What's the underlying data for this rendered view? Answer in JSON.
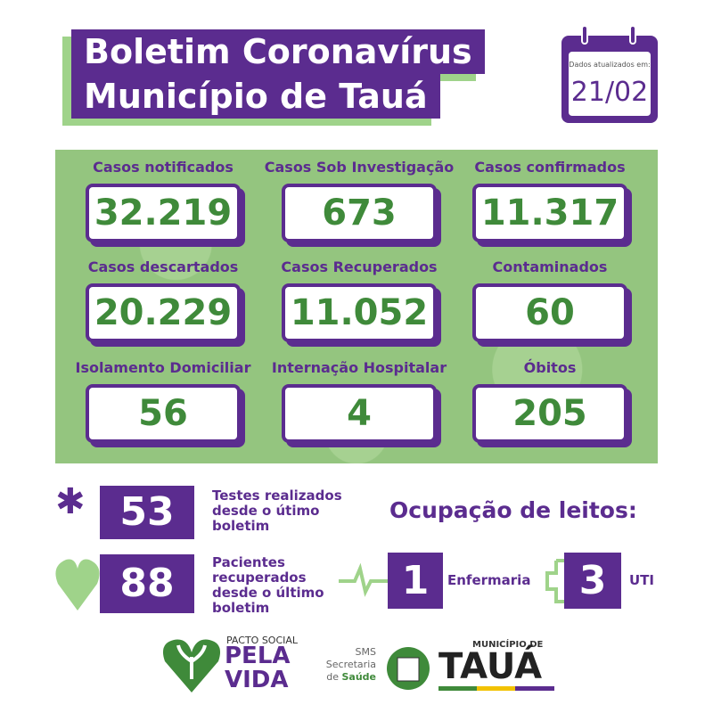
{
  "header": {
    "title_line1": "Boletim Coronavírus",
    "title_line2": "Município de Tauá"
  },
  "date": {
    "label": "Dados atualizados em:",
    "value": "21/02"
  },
  "cards": [
    {
      "label": "Casos notificados",
      "value": "32.219"
    },
    {
      "label": "Casos Sob Investigação",
      "value": "673"
    },
    {
      "label": "Casos confirmados",
      "value": "11.317"
    },
    {
      "label": "Casos descartados",
      "value": "20.229"
    },
    {
      "label": "Casos Recuperados",
      "value": "11.052"
    },
    {
      "label": "Contaminados",
      "value": "60"
    },
    {
      "label": "Isolamento Domiciliar",
      "value": "56"
    },
    {
      "label": "Internação Hospitalar",
      "value": "4"
    },
    {
      "label": "Óbitos",
      "value": "205"
    }
  ],
  "tests": {
    "value": "53",
    "lines": [
      "Testes realizados",
      "desde o útimo",
      "boletim"
    ]
  },
  "recovered": {
    "value": "88",
    "lines": [
      "Pacientes",
      "recuperados",
      "desde o último",
      "boletim"
    ]
  },
  "occupancy": {
    "title": "Ocupação de leitos:",
    "ward": {
      "value": "1",
      "label": "Enfermaria"
    },
    "icu": {
      "value": "3",
      "label": "UTI"
    }
  },
  "footer": {
    "pacto": "PACTO SOCIAL",
    "pela": "PELA",
    "vida": "VIDA",
    "sms": "SMS",
    "secretaria": "Secretaria",
    "de": "de",
    "saude": "Saúde",
    "municipio": "MUNICÍPIO DE",
    "taua": "TAUÁ"
  }
}
